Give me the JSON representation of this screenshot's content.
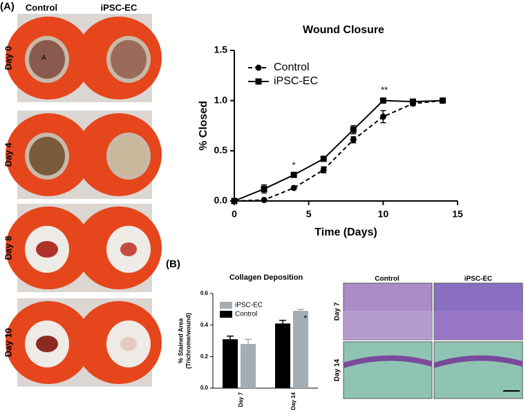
{
  "panel_a": {
    "label": "(A)",
    "columns": [
      "Control",
      "iPSC-EC"
    ],
    "rows": [
      "Day 0",
      "Day 4",
      "Day 8",
      "Day 10"
    ],
    "photo_mark": "A"
  },
  "panel_b": {
    "label": "(B)",
    "histology": {
      "columns": [
        "Control",
        "iPSC-EC"
      ],
      "rows": [
        "Day 7",
        "Day 14"
      ]
    }
  },
  "chart_data": [
    {
      "type": "line",
      "title": "Wound Closure",
      "xlabel": "Time (Days)",
      "ylabel": "% Closed",
      "x": [
        0,
        2,
        4,
        6,
        8,
        10,
        12,
        14
      ],
      "series": [
        {
          "name": "Control",
          "color": "#000000",
          "line_style": "dashed",
          "marker": "circle",
          "values": [
            0,
            0.01,
            0.13,
            0.31,
            0.61,
            0.84,
            0.97,
            1.0
          ],
          "errors": [
            0.01,
            0.01,
            0.01,
            0.03,
            0.03,
            0.06,
            0.02,
            0
          ]
        },
        {
          "name": "iPSC-EC",
          "color": "#000000",
          "line_style": "solid",
          "marker": "square",
          "values": [
            0,
            0.12,
            0.26,
            0.42,
            0.71,
            1.0,
            0.99,
            1.0
          ],
          "errors": [
            0,
            0.04,
            0.02,
            0.02,
            0.04,
            0,
            0.01,
            0
          ]
        }
      ],
      "xlim": [
        0,
        15
      ],
      "xticks": [
        0,
        5,
        10,
        15
      ],
      "ylim": [
        0,
        1.5
      ],
      "yticks": [
        {
          "value": 0,
          "label": "0.0"
        },
        {
          "value": 0.5,
          "label": "0.5"
        },
        {
          "value": 1,
          "label": "1.0"
        },
        {
          "value": 1.5,
          "label": "1.5"
        }
      ],
      "legend": "upper left",
      "annotations": [
        "*",
        "**"
      ]
    },
    {
      "type": "bar",
      "title": "Collagen Deposition",
      "ylabel": [
        "% Stained Area",
        "(Trichrome/wound)"
      ],
      "categories": [
        "Day 7",
        "Day 14"
      ],
      "series": [
        {
          "name": "Control",
          "color": "#000000",
          "values": [
            0.31,
            0.41
          ],
          "errors": [
            0.02,
            0.02
          ]
        },
        {
          "name": "iPSC-EC",
          "color": "#a4adb3",
          "values": [
            0.28,
            0.49
          ],
          "errors": [
            0.03,
            0.01
          ]
        }
      ],
      "ylim": [
        0,
        0.6
      ],
      "yticks": [
        {
          "value": 0,
          "label": "0.0"
        },
        {
          "value": 0.2,
          "label": "0.2"
        },
        {
          "value": 0.4,
          "label": "0.4"
        },
        {
          "value": 0.6,
          "label": "0.6"
        }
      ],
      "legend": "upper left",
      "annotations": [
        "*"
      ]
    }
  ]
}
